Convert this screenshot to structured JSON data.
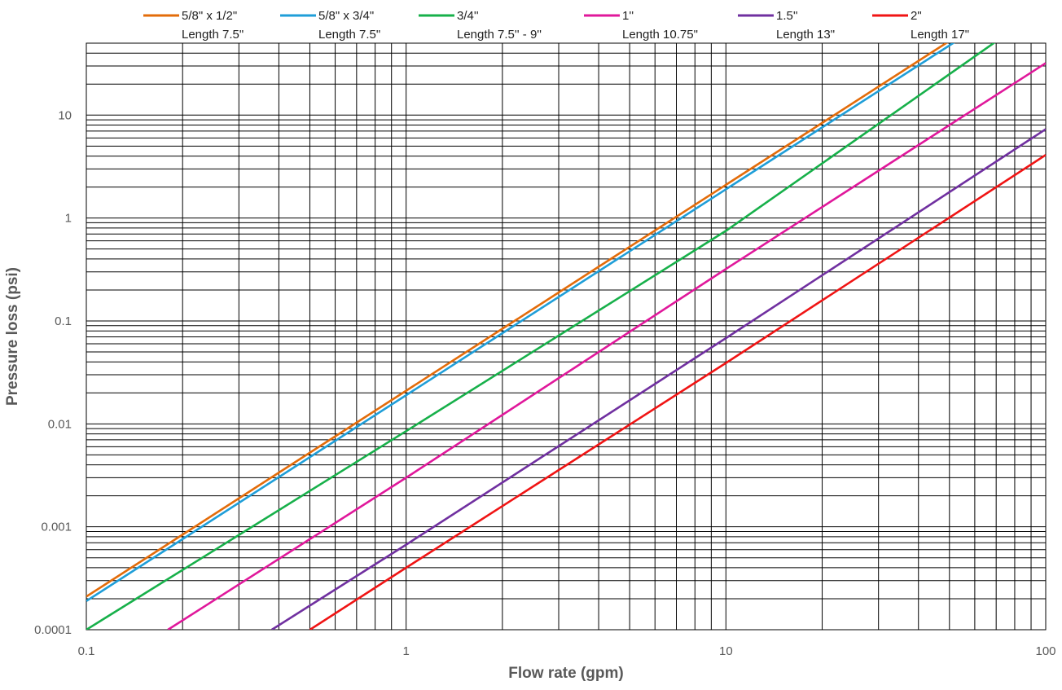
{
  "chart_data": {
    "type": "line",
    "xlabel": "Flow rate (gpm)",
    "ylabel": "Pressure loss (psi)",
    "xscale": "log",
    "yscale": "log",
    "xlim": [
      0.1,
      100
    ],
    "ylim": [
      0.0001,
      50
    ],
    "x_ticks": [
      0.1,
      1,
      10,
      100
    ],
    "x_tick_labels": [
      "0.1",
      "1",
      "10",
      "100"
    ],
    "y_ticks": [
      0.0001,
      0.001,
      0.01,
      0.1,
      1,
      10
    ],
    "y_tick_labels": [
      "0.0001",
      "0.001",
      "0.01",
      "0.1",
      "1",
      "10"
    ],
    "grid": true,
    "legend_position": "top",
    "series": [
      {
        "name": "5/8\" x 1/2\"",
        "label_line2": "Length 7.5\"",
        "color": "#E36C0A",
        "x": [
          0.1,
          1,
          10,
          50
        ],
        "y": [
          0.00021,
          0.021,
          2.1,
          52.5
        ]
      },
      {
        "name": "5/8\" x 3/4\"",
        "label_line2": "Length 7.5\"",
        "color": "#1F9ED8",
        "x": [
          0.1,
          1,
          10,
          52
        ],
        "y": [
          0.00019,
          0.019,
          1.9,
          51.4
        ]
      },
      {
        "name": "3/4''",
        "label_line2": "Length 7.5'' - 9''",
        "color": "#17B04A",
        "x": [
          0.1,
          1,
          10,
          70
        ],
        "y": [
          0.0001,
          0.0085,
          0.75,
          52
        ]
      },
      {
        "name": "1''",
        "label_line2": "Length 10.75\"",
        "color": "#E0189B",
        "x": [
          0.18,
          1,
          10,
          100
        ],
        "y": [
          0.0001,
          0.003,
          0.32,
          32
        ]
      },
      {
        "name": "1.5''",
        "label_line2": "Length 13\"",
        "color": "#7030A0",
        "x": [
          0.38,
          1,
          10,
          100
        ],
        "y": [
          0.0001,
          0.00067,
          0.068,
          7.3
        ]
      },
      {
        "name": "2\"",
        "label_line2": "Length 17\"",
        "color": "#F01414",
        "x": [
          0.5,
          1,
          10,
          100
        ],
        "y": [
          0.0001,
          0.0004,
          0.039,
          4.1
        ]
      }
    ]
  }
}
